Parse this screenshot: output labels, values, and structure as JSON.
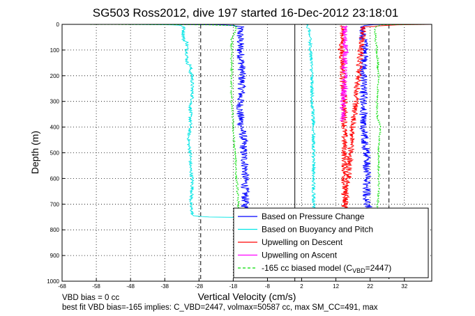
{
  "chart_data": {
    "type": "line",
    "title": "SG503 Ross2012, dive 197 started 16-Dec-2012 23:18:01",
    "xlabel": "Vertical Velocity (cm/s)",
    "ylabel": "Depth (m)",
    "xlim": [
      -68,
      40
    ],
    "ylim": [
      1000,
      0
    ],
    "y_reversed": true,
    "grid": true,
    "legend_position": "bottom-right",
    "x_ticks": [
      -68,
      -58,
      -48,
      -38,
      -28,
      -18,
      -8,
      2,
      12,
      22,
      32
    ],
    "y_ticks": [
      0,
      100,
      200,
      300,
      400,
      500,
      600,
      700,
      800,
      900,
      1000
    ],
    "vertical_reference_lines": [
      {
        "x": -27.5,
        "style": "dashed",
        "color": "#000000"
      },
      {
        "x": 0,
        "style": "solid",
        "color": "#000000"
      },
      {
        "x": 27.5,
        "style": "dashed",
        "color": "#000000"
      }
    ],
    "series": [
      {
        "name": "Based on Pressure Change",
        "color": "#0000ff",
        "style": "solid",
        "noise": 1.2,
        "points": [
          [
            -68,
            0
          ],
          [
            -60,
            0
          ],
          [
            -45,
            0
          ],
          [
            -30,
            1
          ],
          [
            -22,
            2
          ],
          [
            -18,
            4
          ],
          [
            -16,
            10
          ],
          [
            -16,
            30
          ],
          [
            -16,
            100
          ],
          [
            -15.5,
            150
          ],
          [
            -15.5,
            200
          ],
          [
            -15.5,
            260
          ],
          [
            -16,
            300
          ],
          [
            -16,
            350
          ],
          [
            -15.5,
            400
          ],
          [
            -15,
            450
          ],
          [
            -15,
            500
          ],
          [
            -14.5,
            550
          ],
          [
            -14.5,
            600
          ],
          [
            -14.5,
            650
          ],
          [
            -14.5,
            700
          ],
          [
            -14.5,
            730
          ],
          [
            22,
            730
          ],
          [
            21,
            680
          ],
          [
            21,
            620
          ],
          [
            21,
            560
          ],
          [
            21,
            500
          ],
          [
            20.5,
            450
          ],
          [
            20,
            400
          ],
          [
            20,
            350
          ],
          [
            20,
            300
          ],
          [
            20,
            250
          ],
          [
            20,
            200
          ],
          [
            20,
            150
          ],
          [
            20.5,
            100
          ],
          [
            20,
            50
          ],
          [
            20,
            15
          ],
          [
            20,
            5
          ],
          [
            23,
            1
          ],
          [
            30,
            0
          ],
          [
            40,
            0
          ]
        ]
      },
      {
        "name": "Based on Buoyancy and Pitch",
        "color": "#00e5e5",
        "style": "solid",
        "noise": 0.5,
        "points": [
          [
            -68,
            0
          ],
          [
            -50,
            0
          ],
          [
            -40,
            1
          ],
          [
            -36,
            2
          ],
          [
            -34,
            3
          ],
          [
            -33,
            5
          ],
          [
            -32.5,
            10
          ],
          [
            -32.5,
            60
          ],
          [
            -31.5,
            70
          ],
          [
            -31.5,
            150
          ],
          [
            -30.5,
            160
          ],
          [
            -30.5,
            190
          ],
          [
            -30,
            200
          ],
          [
            -30,
            300
          ],
          [
            -30.5,
            310
          ],
          [
            -30.5,
            400
          ],
          [
            -31,
            430
          ],
          [
            -31,
            470
          ],
          [
            -30.5,
            500
          ],
          [
            -30.5,
            560
          ],
          [
            -30,
            600
          ],
          [
            -30,
            650
          ],
          [
            -30.5,
            700
          ],
          [
            -30,
            735
          ],
          [
            -30,
            745
          ],
          [
            -25,
            750
          ],
          [
            -15,
            752
          ],
          [
            -5,
            752
          ],
          [
            0,
            751
          ],
          [
            3,
            748
          ],
          [
            5.5,
            720
          ],
          [
            5.5,
            650
          ],
          [
            5.5,
            500
          ],
          [
            5.5,
            400
          ],
          [
            5,
            300
          ],
          [
            5,
            200
          ],
          [
            4.8,
            150
          ],
          [
            4.6,
            100
          ],
          [
            4.4,
            60
          ],
          [
            4.2,
            30
          ],
          [
            4,
            15
          ],
          [
            3.8,
            5
          ],
          [
            3.5,
            1
          ],
          [
            3.3,
            0
          ]
        ]
      },
      {
        "name": "Upwelling on Descent",
        "color": "#ff0000",
        "style": "solid",
        "noise": 0.9,
        "points": [
          [
            14,
            5
          ],
          [
            14,
            50
          ],
          [
            13.5,
            100
          ],
          [
            14,
            150
          ],
          [
            14,
            200
          ],
          [
            14,
            250
          ],
          [
            14.5,
            300
          ],
          [
            14.5,
            350
          ],
          [
            14.5,
            400
          ],
          [
            14.5,
            450
          ],
          [
            14.5,
            500
          ],
          [
            14.5,
            550
          ],
          [
            14.5,
            600
          ],
          [
            14.5,
            650
          ],
          [
            14.5,
            700
          ],
          [
            14.5,
            730
          ],
          [
            20,
            10
          ],
          [
            30,
            2
          ],
          [
            40,
            0
          ]
        ]
      },
      {
        "name": "Upwelling on Ascent",
        "color": "#ff00ff",
        "style": "solid",
        "noise": 0.9,
        "points": [
          [
            14.5,
            5
          ],
          [
            14.5,
            50
          ],
          [
            15,
            100
          ],
          [
            14.5,
            150
          ],
          [
            14.5,
            200
          ],
          [
            14.5,
            250
          ],
          [
            14,
            300
          ],
          [
            14,
            350
          ],
          [
            14,
            380
          ]
        ]
      },
      {
        "name": "-165 cc biased model (C",
        "name_sub": "VBD",
        "name_suffix": "=2447)",
        "color": "#00dd00",
        "style": "dashed",
        "noise": 0.3,
        "points": [
          [
            -68,
            0
          ],
          [
            -40,
            1
          ],
          [
            -25,
            2
          ],
          [
            -18,
            5
          ],
          [
            -17,
            10
          ],
          [
            -18.5,
            60
          ],
          [
            -18.5,
            200
          ],
          [
            -18.5,
            300
          ],
          [
            -18,
            400
          ],
          [
            -17.5,
            500
          ],
          [
            -17,
            600
          ],
          [
            -16.5,
            700
          ],
          [
            -16.5,
            730
          ],
          [
            24,
            730
          ],
          [
            24.5,
            650
          ],
          [
            24.5,
            550
          ],
          [
            24.5,
            450
          ],
          [
            25,
            400
          ],
          [
            24,
            350
          ],
          [
            24,
            300
          ],
          [
            24.5,
            200
          ],
          [
            24,
            100
          ],
          [
            23.5,
            50
          ],
          [
            23.5,
            10
          ],
          [
            25,
            2
          ],
          [
            40,
            0
          ]
        ]
      }
    ],
    "annotations": [
      "VBD bias = 0 cc",
      "best fit VBD bias=-165 implies: C_VBD=2447, volmax=50587 cc, max SM_CC=491, max"
    ]
  }
}
